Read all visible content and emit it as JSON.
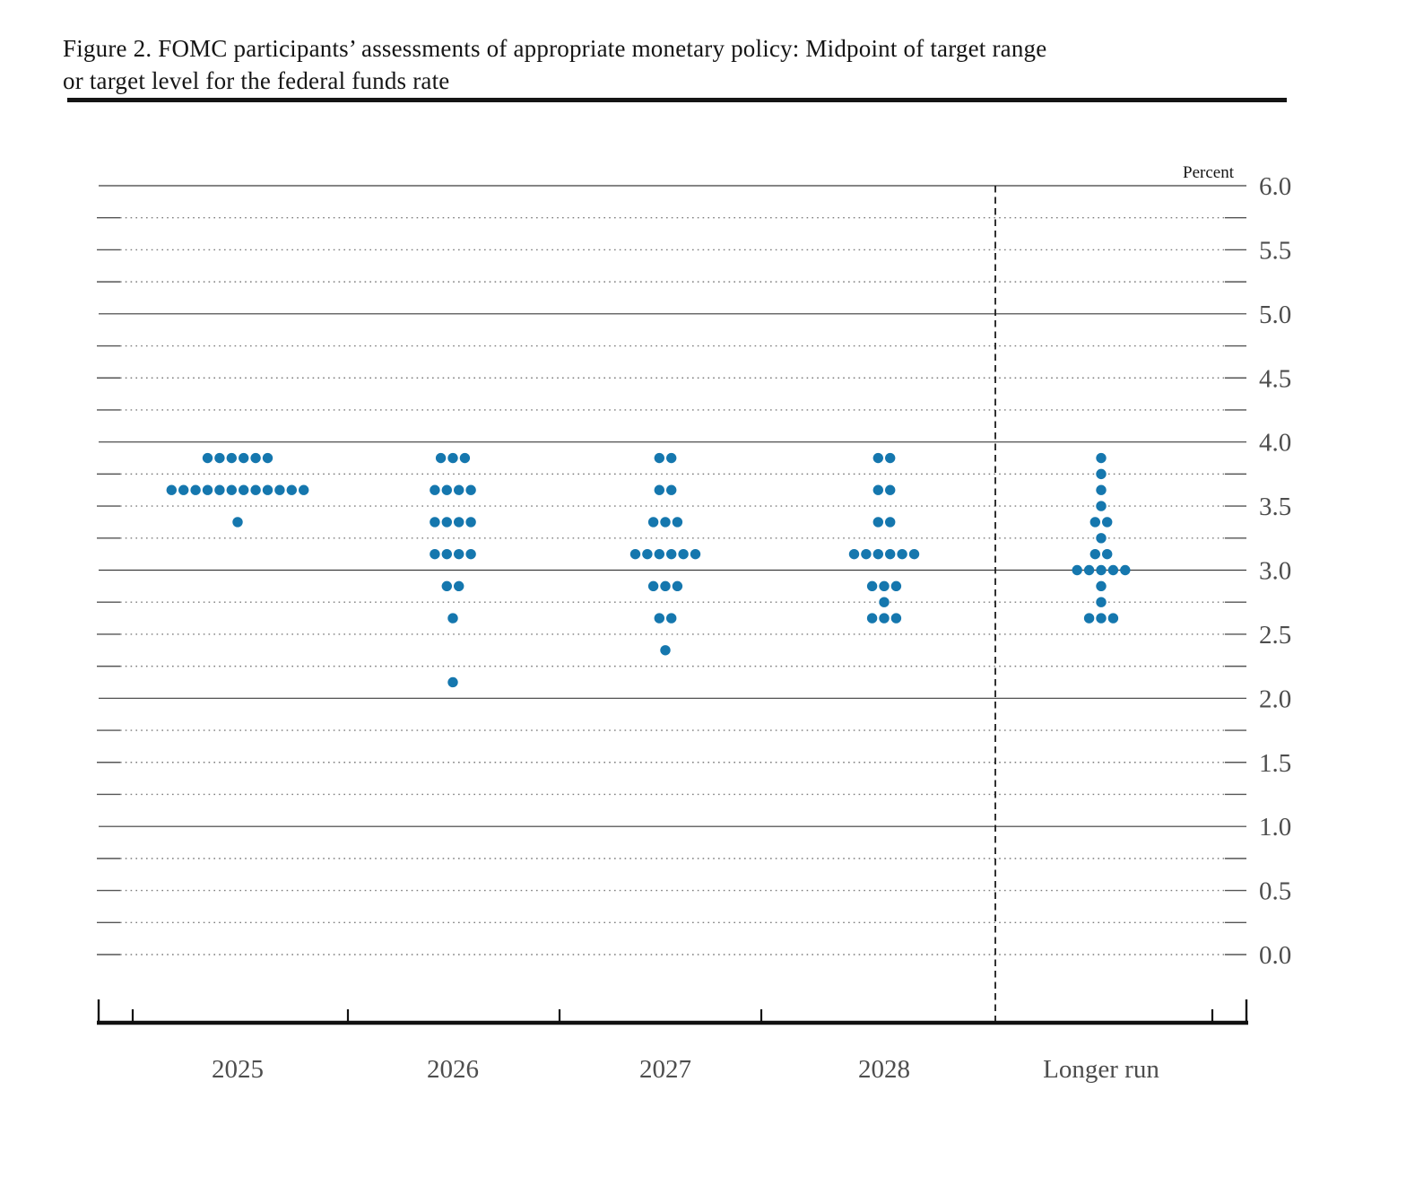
{
  "title": {
    "line1": "Figure 2.  FOMC participants’ assessments of appropriate monetary policy: Midpoint of target range",
    "line2": "or target level for the federal funds rate"
  },
  "chart_data": {
    "type": "scatter",
    "subtype": "fomc-dot-plot",
    "unit_label": "Percent",
    "xlabel": "",
    "ylabel": "Percent",
    "ylim": [
      0.0,
      6.0
    ],
    "ytick_step": 0.5,
    "grid_minor_step": 0.25,
    "grid_on": true,
    "solid_gridlines": [
      6.0,
      5.0,
      4.0,
      3.0,
      2.0,
      1.0
    ],
    "ytick_labels": [
      "6.0",
      "5.5",
      "5.0",
      "4.5",
      "4.0",
      "3.5",
      "3.0",
      "2.5",
      "2.0",
      "1.5",
      "1.0",
      "0.5",
      "0.0"
    ],
    "categories": [
      "2025",
      "2026",
      "2027",
      "2028",
      "Longer run"
    ],
    "dot_color": "#1577ae",
    "participants_per_column": 19,
    "series": [
      {
        "category": "2025",
        "dots": [
          {
            "rate": 3.875,
            "count": 6
          },
          {
            "rate": 3.625,
            "count": 12
          },
          {
            "rate": 3.375,
            "count": 1
          }
        ]
      },
      {
        "category": "2026",
        "dots": [
          {
            "rate": 3.875,
            "count": 3
          },
          {
            "rate": 3.625,
            "count": 4
          },
          {
            "rate": 3.375,
            "count": 4
          },
          {
            "rate": 3.125,
            "count": 4
          },
          {
            "rate": 2.875,
            "count": 2
          },
          {
            "rate": 2.625,
            "count": 1
          },
          {
            "rate": 2.125,
            "count": 1
          }
        ]
      },
      {
        "category": "2027",
        "dots": [
          {
            "rate": 3.875,
            "count": 2
          },
          {
            "rate": 3.625,
            "count": 2
          },
          {
            "rate": 3.375,
            "count": 3
          },
          {
            "rate": 3.125,
            "count": 6
          },
          {
            "rate": 2.875,
            "count": 3
          },
          {
            "rate": 2.625,
            "count": 2
          },
          {
            "rate": 2.375,
            "count": 1
          }
        ]
      },
      {
        "category": "2028",
        "dots": [
          {
            "rate": 3.875,
            "count": 2
          },
          {
            "rate": 3.625,
            "count": 2
          },
          {
            "rate": 3.375,
            "count": 2
          },
          {
            "rate": 3.125,
            "count": 6
          },
          {
            "rate": 2.875,
            "count": 3
          },
          {
            "rate": 2.75,
            "count": 1
          },
          {
            "rate": 2.625,
            "count": 3
          }
        ]
      },
      {
        "category": "Longer run",
        "dots": [
          {
            "rate": 3.875,
            "count": 1
          },
          {
            "rate": 3.75,
            "count": 1
          },
          {
            "rate": 3.625,
            "count": 1
          },
          {
            "rate": 3.5,
            "count": 1
          },
          {
            "rate": 3.375,
            "count": 2
          },
          {
            "rate": 3.25,
            "count": 1
          },
          {
            "rate": 3.125,
            "count": 2
          },
          {
            "rate": 3.0,
            "count": 5
          },
          {
            "rate": 2.875,
            "count": 1
          },
          {
            "rate": 2.75,
            "count": 1
          },
          {
            "rate": 2.625,
            "count": 3
          }
        ]
      }
    ]
  }
}
